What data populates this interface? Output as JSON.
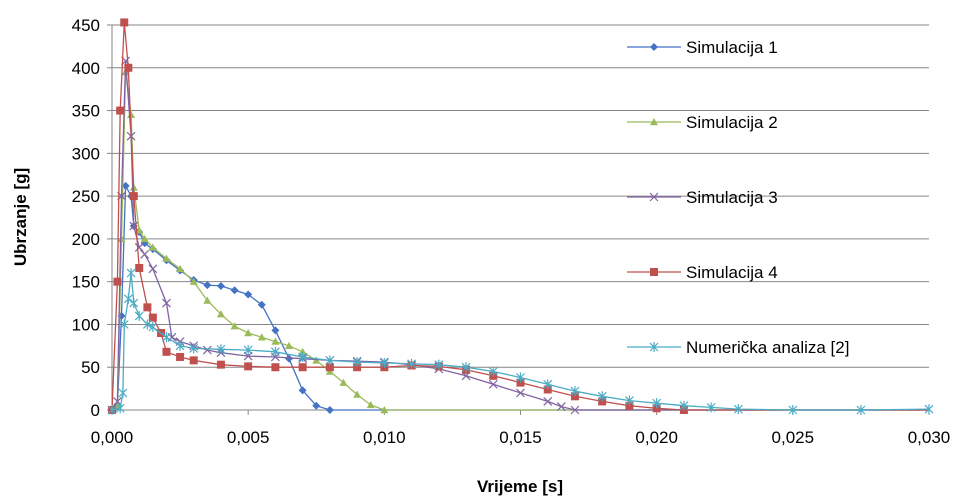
{
  "chart_data": {
    "type": "line",
    "title": "",
    "xlabel": "Vrijeme  [s]",
    "ylabel": "Ubrzanje [g]",
    "xlim": [
      0,
      0.03
    ],
    "ylim": [
      0,
      450
    ],
    "x_ticks": [
      "0,000",
      "0,005",
      "0,010",
      "0,015",
      "0,020",
      "0,025",
      "0,030"
    ],
    "y_ticks": [
      "0",
      "50",
      "100",
      "150",
      "200",
      "250",
      "300",
      "350",
      "400",
      "450"
    ],
    "grid": "horizontal",
    "legend": "right",
    "series": [
      {
        "name": "Simulacija 1",
        "color": "#4472C4",
        "marker": "diamond",
        "points": [
          [
            0,
            0
          ],
          [
            0.0002,
            5
          ],
          [
            0.00035,
            110
          ],
          [
            0.0005,
            262
          ],
          [
            0.0007,
            250
          ],
          [
            0.0008,
            215
          ],
          [
            0.001,
            208
          ],
          [
            0.0012,
            195
          ],
          [
            0.0015,
            188
          ],
          [
            0.002,
            175
          ],
          [
            0.0025,
            163
          ],
          [
            0.003,
            152
          ],
          [
            0.0035,
            146
          ],
          [
            0.004,
            145
          ],
          [
            0.0045,
            140
          ],
          [
            0.005,
            135
          ],
          [
            0.0055,
            123
          ],
          [
            0.006,
            93
          ],
          [
            0.0065,
            60
          ],
          [
            0.007,
            23
          ],
          [
            0.0075,
            5
          ],
          [
            0.008,
            0
          ],
          [
            0.03,
            0
          ]
        ]
      },
      {
        "name": "Simulacija 2",
        "color": "#9BBB59",
        "marker": "triangle",
        "points": [
          [
            0,
            0
          ],
          [
            0.0002,
            5
          ],
          [
            0.00035,
            200
          ],
          [
            0.0005,
            395
          ],
          [
            0.0007,
            345
          ],
          [
            0.0008,
            260
          ],
          [
            0.001,
            210
          ],
          [
            0.0012,
            200
          ],
          [
            0.0015,
            190
          ],
          [
            0.002,
            177
          ],
          [
            0.0025,
            165
          ],
          [
            0.003,
            150
          ],
          [
            0.0035,
            128
          ],
          [
            0.004,
            112
          ],
          [
            0.0045,
            98
          ],
          [
            0.005,
            90
          ],
          [
            0.0055,
            85
          ],
          [
            0.006,
            80
          ],
          [
            0.0065,
            75
          ],
          [
            0.007,
            68
          ],
          [
            0.0075,
            58
          ],
          [
            0.008,
            45
          ],
          [
            0.0085,
            32
          ],
          [
            0.009,
            18
          ],
          [
            0.0095,
            6
          ],
          [
            0.01,
            0
          ],
          [
            0.03,
            0
          ]
        ]
      },
      {
        "name": "Simulacija 3",
        "color": "#8064A2",
        "marker": "x",
        "points": [
          [
            0,
            0
          ],
          [
            0.0002,
            10
          ],
          [
            0.00035,
            250
          ],
          [
            0.0005,
            408
          ],
          [
            0.0007,
            320
          ],
          [
            0.0008,
            215
          ],
          [
            0.001,
            190
          ],
          [
            0.0012,
            182
          ],
          [
            0.0015,
            165
          ],
          [
            0.002,
            125
          ],
          [
            0.0022,
            85
          ],
          [
            0.0025,
            80
          ],
          [
            0.003,
            75
          ],
          [
            0.0035,
            70
          ],
          [
            0.004,
            67
          ],
          [
            0.005,
            63
          ],
          [
            0.006,
            62
          ],
          [
            0.007,
            60
          ],
          [
            0.008,
            58
          ],
          [
            0.009,
            57
          ],
          [
            0.01,
            56
          ],
          [
            0.011,
            53
          ],
          [
            0.012,
            48
          ],
          [
            0.013,
            40
          ],
          [
            0.014,
            30
          ],
          [
            0.015,
            20
          ],
          [
            0.016,
            10
          ],
          [
            0.0165,
            4
          ],
          [
            0.017,
            0
          ],
          [
            0.03,
            0
          ]
        ]
      },
      {
        "name": "Simulacija 4",
        "color": "#C0504D",
        "marker": "square",
        "points": [
          [
            0,
            0
          ],
          [
            0.0002,
            150
          ],
          [
            0.0003,
            350
          ],
          [
            0.00045,
            453
          ],
          [
            0.0006,
            400
          ],
          [
            0.0008,
            250
          ],
          [
            0.001,
            166
          ],
          [
            0.0013,
            120
          ],
          [
            0.0015,
            108
          ],
          [
            0.0018,
            90
          ],
          [
            0.002,
            68
          ],
          [
            0.0025,
            62
          ],
          [
            0.003,
            58
          ],
          [
            0.004,
            53
          ],
          [
            0.005,
            51
          ],
          [
            0.006,
            50
          ],
          [
            0.007,
            50
          ],
          [
            0.008,
            50
          ],
          [
            0.009,
            50
          ],
          [
            0.01,
            50
          ],
          [
            0.011,
            52
          ],
          [
            0.012,
            51
          ],
          [
            0.013,
            47
          ],
          [
            0.014,
            40
          ],
          [
            0.015,
            32
          ],
          [
            0.016,
            24
          ],
          [
            0.017,
            16
          ],
          [
            0.018,
            10
          ],
          [
            0.019,
            5
          ],
          [
            0.02,
            2
          ],
          [
            0.021,
            0
          ],
          [
            0.03,
            0
          ]
        ]
      },
      {
        "name": "Numerička analiza [2]",
        "color": "#4BACC6",
        "marker": "star",
        "points": [
          [
            0,
            0
          ],
          [
            0.0003,
            2
          ],
          [
            0.0004,
            20
          ],
          [
            0.00045,
            100
          ],
          [
            0.0006,
            130
          ],
          [
            0.0007,
            160
          ],
          [
            0.0008,
            125
          ],
          [
            0.001,
            110
          ],
          [
            0.0013,
            100
          ],
          [
            0.0015,
            97
          ],
          [
            0.002,
            85
          ],
          [
            0.0025,
            75
          ],
          [
            0.003,
            72
          ],
          [
            0.004,
            71
          ],
          [
            0.005,
            70
          ],
          [
            0.006,
            68
          ],
          [
            0.007,
            62
          ],
          [
            0.008,
            58
          ],
          [
            0.009,
            56
          ],
          [
            0.01,
            55
          ],
          [
            0.011,
            54
          ],
          [
            0.012,
            53
          ],
          [
            0.013,
            50
          ],
          [
            0.014,
            45
          ],
          [
            0.015,
            38
          ],
          [
            0.016,
            30
          ],
          [
            0.017,
            22
          ],
          [
            0.018,
            16
          ],
          [
            0.019,
            11
          ],
          [
            0.02,
            8
          ],
          [
            0.021,
            5
          ],
          [
            0.022,
            3
          ],
          [
            0.023,
            1
          ],
          [
            0.025,
            0
          ],
          [
            0.0275,
            0
          ],
          [
            0.03,
            1
          ]
        ]
      }
    ]
  }
}
